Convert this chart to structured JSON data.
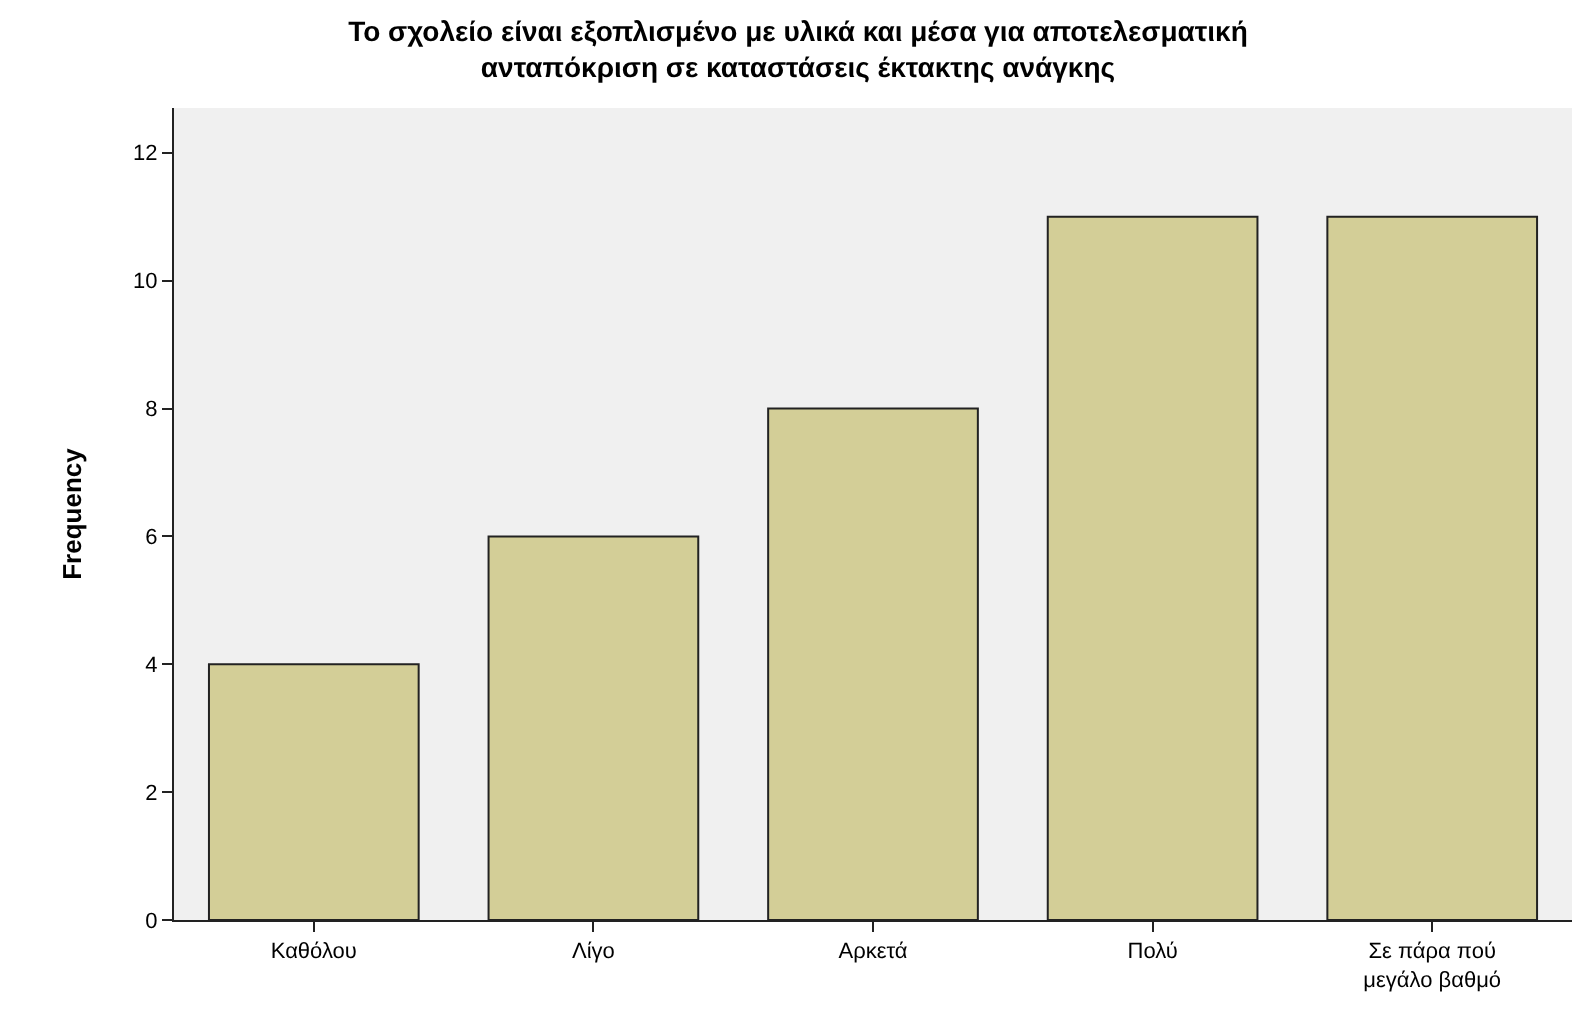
{
  "chart_data": {
    "type": "bar",
    "title": "Το σχολείο είναι εξοπλισμένο με υλικά και μέσα για αποτελεσματική\nανταπόκριση σε καταστάσεις έκτακτης ανάγκης",
    "ylabel": "Frequency",
    "categories": [
      "Καθόλου",
      "Λίγο",
      "Αρκετά",
      "Πολύ",
      "Σε πάρα πού\nμεγάλο βαθμό"
    ],
    "values": [
      4,
      6,
      8,
      11,
      11
    ],
    "color": "#d3ce97",
    "ylim": [
      0,
      12.7
    ],
    "yticks": [
      0,
      2,
      4,
      6,
      8,
      10,
      12
    ],
    "grid": false
  }
}
